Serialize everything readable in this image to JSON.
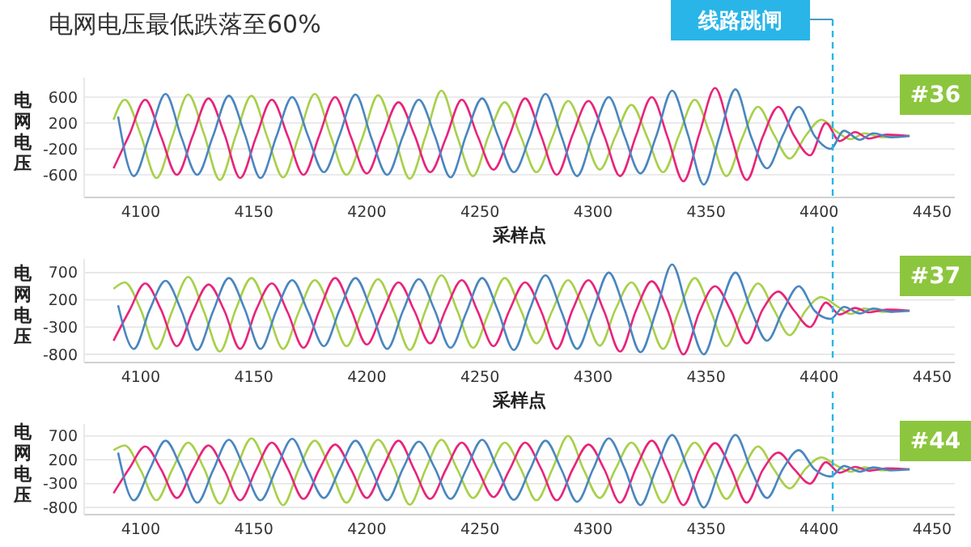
{
  "chart_data": [
    {
      "type": "line",
      "title": "电网电压最低跌落至60%",
      "xlabel": "采样点",
      "ylabel": "电网电压",
      "xlim": [
        4075,
        4460
      ],
      "xticks": [
        4100,
        4150,
        4200,
        4250,
        4300,
        4350,
        4400,
        4450
      ],
      "ylim": [
        -950,
        900
      ],
      "yticks": [
        -600,
        -200,
        200,
        600
      ],
      "grid": "y",
      "marker": "none",
      "line_style": "solid",
      "annotations": [
        "#36"
      ],
      "ref_lines": [
        {
          "axis": "x",
          "value": 4406,
          "label": "线路跳闸",
          "color": "#29b5e8",
          "line_style": "dashed"
        }
      ],
      "series": [
        {
          "color": "#a8d04a",
          "x": [
            4088,
            4093,
            4100,
            4107,
            4114,
            4121,
            4128,
            4135,
            4142,
            4149,
            4156,
            4163,
            4170,
            4177,
            4184,
            4191,
            4198,
            4205,
            4212,
            4219,
            4226,
            4233,
            4240,
            4247,
            4254,
            4261,
            4268,
            4275,
            4282,
            4289,
            4296,
            4303,
            4310,
            4317,
            4324,
            4331,
            4338,
            4345,
            4352,
            4359,
            4366,
            4373,
            4380,
            4387,
            4394,
            4401,
            4408,
            4414,
            4420,
            4428,
            4440
          ],
          "values": [
            250,
            560,
            20,
            -650,
            -10,
            640,
            30,
            -680,
            0,
            620,
            -20,
            -640,
            10,
            650,
            0,
            -600,
            -30,
            630,
            20,
            -660,
            0,
            700,
            -10,
            -620,
            20,
            520,
            0,
            -560,
            -20,
            540,
            30,
            -520,
            0,
            480,
            -20,
            -560,
            10,
            560,
            0,
            -620,
            -30,
            450,
            20,
            -350,
            0,
            250,
            60,
            -50,
            40,
            -20,
            0
          ]
        },
        {
          "color": "#e8247a",
          "x": [
            4088,
            4095,
            4102,
            4109,
            4116,
            4123,
            4130,
            4137,
            4144,
            4151,
            4158,
            4165,
            4172,
            4179,
            4186,
            4193,
            4200,
            4207,
            4214,
            4221,
            4228,
            4235,
            4242,
            4249,
            4256,
            4263,
            4270,
            4277,
            4284,
            4291,
            4298,
            4305,
            4312,
            4319,
            4326,
            4333,
            4340,
            4347,
            4354,
            4361,
            4368,
            4375,
            4382,
            4389,
            4396,
            4403,
            4409,
            4416,
            4422,
            4430,
            4440
          ],
          "values": [
            -500,
            20,
            560,
            -10,
            -600,
            0,
            580,
            30,
            -650,
            -20,
            560,
            0,
            -600,
            10,
            600,
            -20,
            -580,
            0,
            520,
            20,
            -560,
            -30,
            560,
            0,
            -520,
            0,
            580,
            10,
            -600,
            20,
            540,
            0,
            -620,
            0,
            600,
            -20,
            -700,
            30,
            740,
            0,
            -680,
            -20,
            450,
            0,
            -300,
            200,
            -80,
            60,
            -40,
            20,
            0
          ]
        },
        {
          "color": "#4a86c0",
          "x": [
            4090,
            4097,
            4104,
            4111,
            4118,
            4125,
            4132,
            4139,
            4146,
            4153,
            4160,
            4167,
            4174,
            4181,
            4188,
            4195,
            4202,
            4209,
            4216,
            4223,
            4230,
            4237,
            4244,
            4251,
            4258,
            4265,
            4272,
            4279,
            4286,
            4293,
            4300,
            4307,
            4314,
            4321,
            4328,
            4335,
            4342,
            4349,
            4356,
            4363,
            4370,
            4377,
            4384,
            4391,
            4398,
            4405,
            4411,
            4418,
            4424,
            4432,
            4440
          ],
          "values": [
            300,
            -620,
            10,
            650,
            -20,
            -600,
            0,
            620,
            30,
            -650,
            -10,
            600,
            0,
            -560,
            20,
            640,
            -30,
            -600,
            0,
            560,
            10,
            -640,
            20,
            580,
            0,
            -560,
            -20,
            650,
            0,
            -620,
            30,
            600,
            -10,
            -580,
            0,
            700,
            20,
            -750,
            0,
            720,
            -20,
            -500,
            10,
            450,
            0,
            -200,
            80,
            -60,
            40,
            -20,
            0
          ]
        }
      ]
    },
    {
      "type": "line",
      "xlabel": "采样点",
      "ylabel": "电网电压",
      "xlim": [
        4075,
        4460
      ],
      "xticks": [
        4100,
        4150,
        4200,
        4250,
        4300,
        4350,
        4400,
        4450
      ],
      "ylim": [
        -950,
        950
      ],
      "yticks": [
        -800,
        -300,
        200,
        700
      ],
      "grid": "y",
      "marker": "none",
      "line_style": "solid",
      "annotations": [
        "#37"
      ],
      "ref_lines": [
        {
          "axis": "x",
          "value": 4406,
          "color": "#29b5e8",
          "line_style": "dashed"
        }
      ],
      "series": [
        {
          "color": "#a8d04a",
          "x": [
            4088,
            4093,
            4100,
            4107,
            4114,
            4121,
            4128,
            4135,
            4142,
            4149,
            4156,
            4163,
            4170,
            4177,
            4184,
            4191,
            4198,
            4205,
            4212,
            4219,
            4226,
            4233,
            4240,
            4247,
            4254,
            4261,
            4268,
            4275,
            4282,
            4289,
            4296,
            4303,
            4310,
            4317,
            4324,
            4331,
            4338,
            4345,
            4352,
            4359,
            4366,
            4373,
            4380,
            4387,
            4394,
            4401,
            4408,
            4414,
            4420,
            4428,
            4440
          ],
          "values": [
            400,
            520,
            20,
            -700,
            0,
            620,
            -20,
            -750,
            20,
            600,
            0,
            -700,
            -10,
            560,
            30,
            -650,
            0,
            580,
            -20,
            -720,
            10,
            650,
            0,
            -680,
            -20,
            600,
            20,
            -600,
            0,
            560,
            0,
            -640,
            30,
            520,
            -30,
            -700,
            0,
            600,
            0,
            -650,
            -20,
            500,
            20,
            -450,
            0,
            250,
            80,
            -60,
            40,
            -20,
            0
          ]
        },
        {
          "color": "#e8247a",
          "x": [
            4088,
            4095,
            4102,
            4109,
            4116,
            4123,
            4130,
            4137,
            4144,
            4151,
            4158,
            4165,
            4172,
            4179,
            4186,
            4193,
            4200,
            4207,
            4214,
            4221,
            4228,
            4235,
            4242,
            4249,
            4256,
            4263,
            4270,
            4277,
            4284,
            4291,
            4298,
            4305,
            4312,
            4319,
            4326,
            4333,
            4340,
            4347,
            4354,
            4361,
            4368,
            4375,
            4382,
            4389,
            4396,
            4403,
            4409,
            4416,
            4422,
            4430,
            4440
          ],
          "values": [
            -550,
            0,
            500,
            20,
            -650,
            -20,
            480,
            0,
            -700,
            10,
            500,
            -30,
            -680,
            0,
            600,
            20,
            -620,
            -20,
            520,
            0,
            -600,
            30,
            560,
            -10,
            -650,
            0,
            520,
            0,
            -700,
            20,
            560,
            -20,
            -750,
            0,
            540,
            10,
            -800,
            -30,
            450,
            0,
            -600,
            20,
            350,
            0,
            -300,
            150,
            -70,
            50,
            -30,
            20,
            0
          ]
        },
        {
          "color": "#4a86c0",
          "x": [
            4090,
            4097,
            4104,
            4111,
            4118,
            4125,
            4132,
            4139,
            4146,
            4153,
            4160,
            4167,
            4174,
            4181,
            4188,
            4195,
            4202,
            4209,
            4216,
            4223,
            4230,
            4237,
            4244,
            4251,
            4258,
            4265,
            4272,
            4279,
            4286,
            4293,
            4300,
            4307,
            4314,
            4321,
            4328,
            4335,
            4342,
            4349,
            4356,
            4363,
            4370,
            4377,
            4384,
            4391,
            4398,
            4405,
            4411,
            4418,
            4424,
            4432,
            4440
          ],
          "values": [
            100,
            -700,
            20,
            550,
            0,
            -720,
            -10,
            600,
            30,
            -700,
            0,
            560,
            -20,
            -650,
            20,
            600,
            0,
            -700,
            0,
            580,
            10,
            -680,
            -30,
            600,
            0,
            -720,
            20,
            650,
            -10,
            -700,
            0,
            700,
            20,
            -760,
            0,
            850,
            -30,
            -800,
            20,
            700,
            0,
            -550,
            0,
            450,
            0,
            -150,
            70,
            -50,
            40,
            -20,
            0
          ]
        }
      ]
    },
    {
      "type": "line",
      "ylabel": "电网电压",
      "xlim": [
        4075,
        4460
      ],
      "xticks": [
        4100,
        4150,
        4200,
        4250,
        4300,
        4350,
        4400,
        4450
      ],
      "ylim": [
        -950,
        950
      ],
      "yticks": [
        -800,
        -300,
        200,
        700
      ],
      "grid": "y",
      "marker": "none",
      "line_style": "solid",
      "annotations": [
        "#44"
      ],
      "ref_lines": [
        {
          "axis": "x",
          "value": 4406,
          "color": "#29b5e8",
          "line_style": "dashed"
        }
      ],
      "series": [
        {
          "color": "#a8d04a",
          "x": [
            4088,
            4093,
            4100,
            4107,
            4114,
            4121,
            4128,
            4135,
            4142,
            4149,
            4156,
            4163,
            4170,
            4177,
            4184,
            4191,
            4198,
            4205,
            4212,
            4219,
            4226,
            4233,
            4240,
            4247,
            4254,
            4261,
            4268,
            4275,
            4282,
            4289,
            4296,
            4303,
            4310,
            4317,
            4324,
            4331,
            4338,
            4345,
            4352,
            4359,
            4366,
            4373,
            4380,
            4387,
            4394,
            4401,
            4408,
            4414,
            4420,
            4428,
            4440
          ],
          "values": [
            400,
            500,
            -20,
            -650,
            0,
            560,
            20,
            -720,
            -10,
            650,
            0,
            -750,
            20,
            600,
            -10,
            -700,
            0,
            620,
            30,
            -740,
            0,
            620,
            0,
            -600,
            -20,
            560,
            20,
            -650,
            0,
            700,
            -20,
            -600,
            10,
            560,
            0,
            -700,
            0,
            560,
            20,
            -620,
            -30,
            480,
            0,
            -400,
            10,
            250,
            70,
            -50,
            40,
            -20,
            0
          ]
        },
        {
          "color": "#e8247a",
          "x": [
            4088,
            4095,
            4102,
            4109,
            4116,
            4123,
            4130,
            4137,
            4144,
            4151,
            4158,
            4165,
            4172,
            4179,
            4186,
            4193,
            4200,
            4207,
            4214,
            4221,
            4228,
            4235,
            4242,
            4249,
            4256,
            4263,
            4270,
            4277,
            4284,
            4291,
            4298,
            4305,
            4312,
            4319,
            4326,
            4333,
            4340,
            4347,
            4354,
            4361,
            4368,
            4375,
            4382,
            4389,
            4396,
            4403,
            4409,
            4416,
            4422,
            4430,
            4440
          ],
          "values": [
            -500,
            20,
            480,
            0,
            -600,
            0,
            500,
            -20,
            -650,
            -10,
            560,
            20,
            -620,
            0,
            520,
            0,
            -600,
            30,
            600,
            -10,
            -620,
            0,
            560,
            0,
            -580,
            -20,
            560,
            20,
            -650,
            0,
            520,
            0,
            -700,
            20,
            600,
            -20,
            -750,
            0,
            550,
            10,
            -700,
            -20,
            350,
            0,
            -300,
            150,
            -70,
            50,
            -30,
            20,
            0
          ]
        },
        {
          "color": "#4a86c0",
          "x": [
            4090,
            4097,
            4104,
            4111,
            4118,
            4125,
            4132,
            4139,
            4146,
            4153,
            4160,
            4167,
            4174,
            4181,
            4188,
            4195,
            4202,
            4209,
            4216,
            4223,
            4230,
            4237,
            4244,
            4251,
            4258,
            4265,
            4272,
            4279,
            4286,
            4293,
            4300,
            4307,
            4314,
            4321,
            4328,
            4335,
            4342,
            4349,
            4356,
            4363,
            4370,
            4377,
            4384,
            4391,
            4398,
            4405,
            4411,
            4418,
            4424,
            4432,
            4440
          ],
          "values": [
            350,
            -650,
            0,
            600,
            20,
            -700,
            -20,
            620,
            0,
            -650,
            10,
            640,
            -20,
            -600,
            0,
            600,
            0,
            -650,
            20,
            580,
            30,
            -620,
            0,
            620,
            -10,
            -640,
            -20,
            600,
            0,
            -680,
            0,
            650,
            20,
            -750,
            20,
            720,
            0,
            -800,
            0,
            720,
            -20,
            -600,
            10,
            400,
            0,
            -150,
            70,
            -50,
            40,
            -20,
            0
          ]
        }
      ]
    }
  ]
}
